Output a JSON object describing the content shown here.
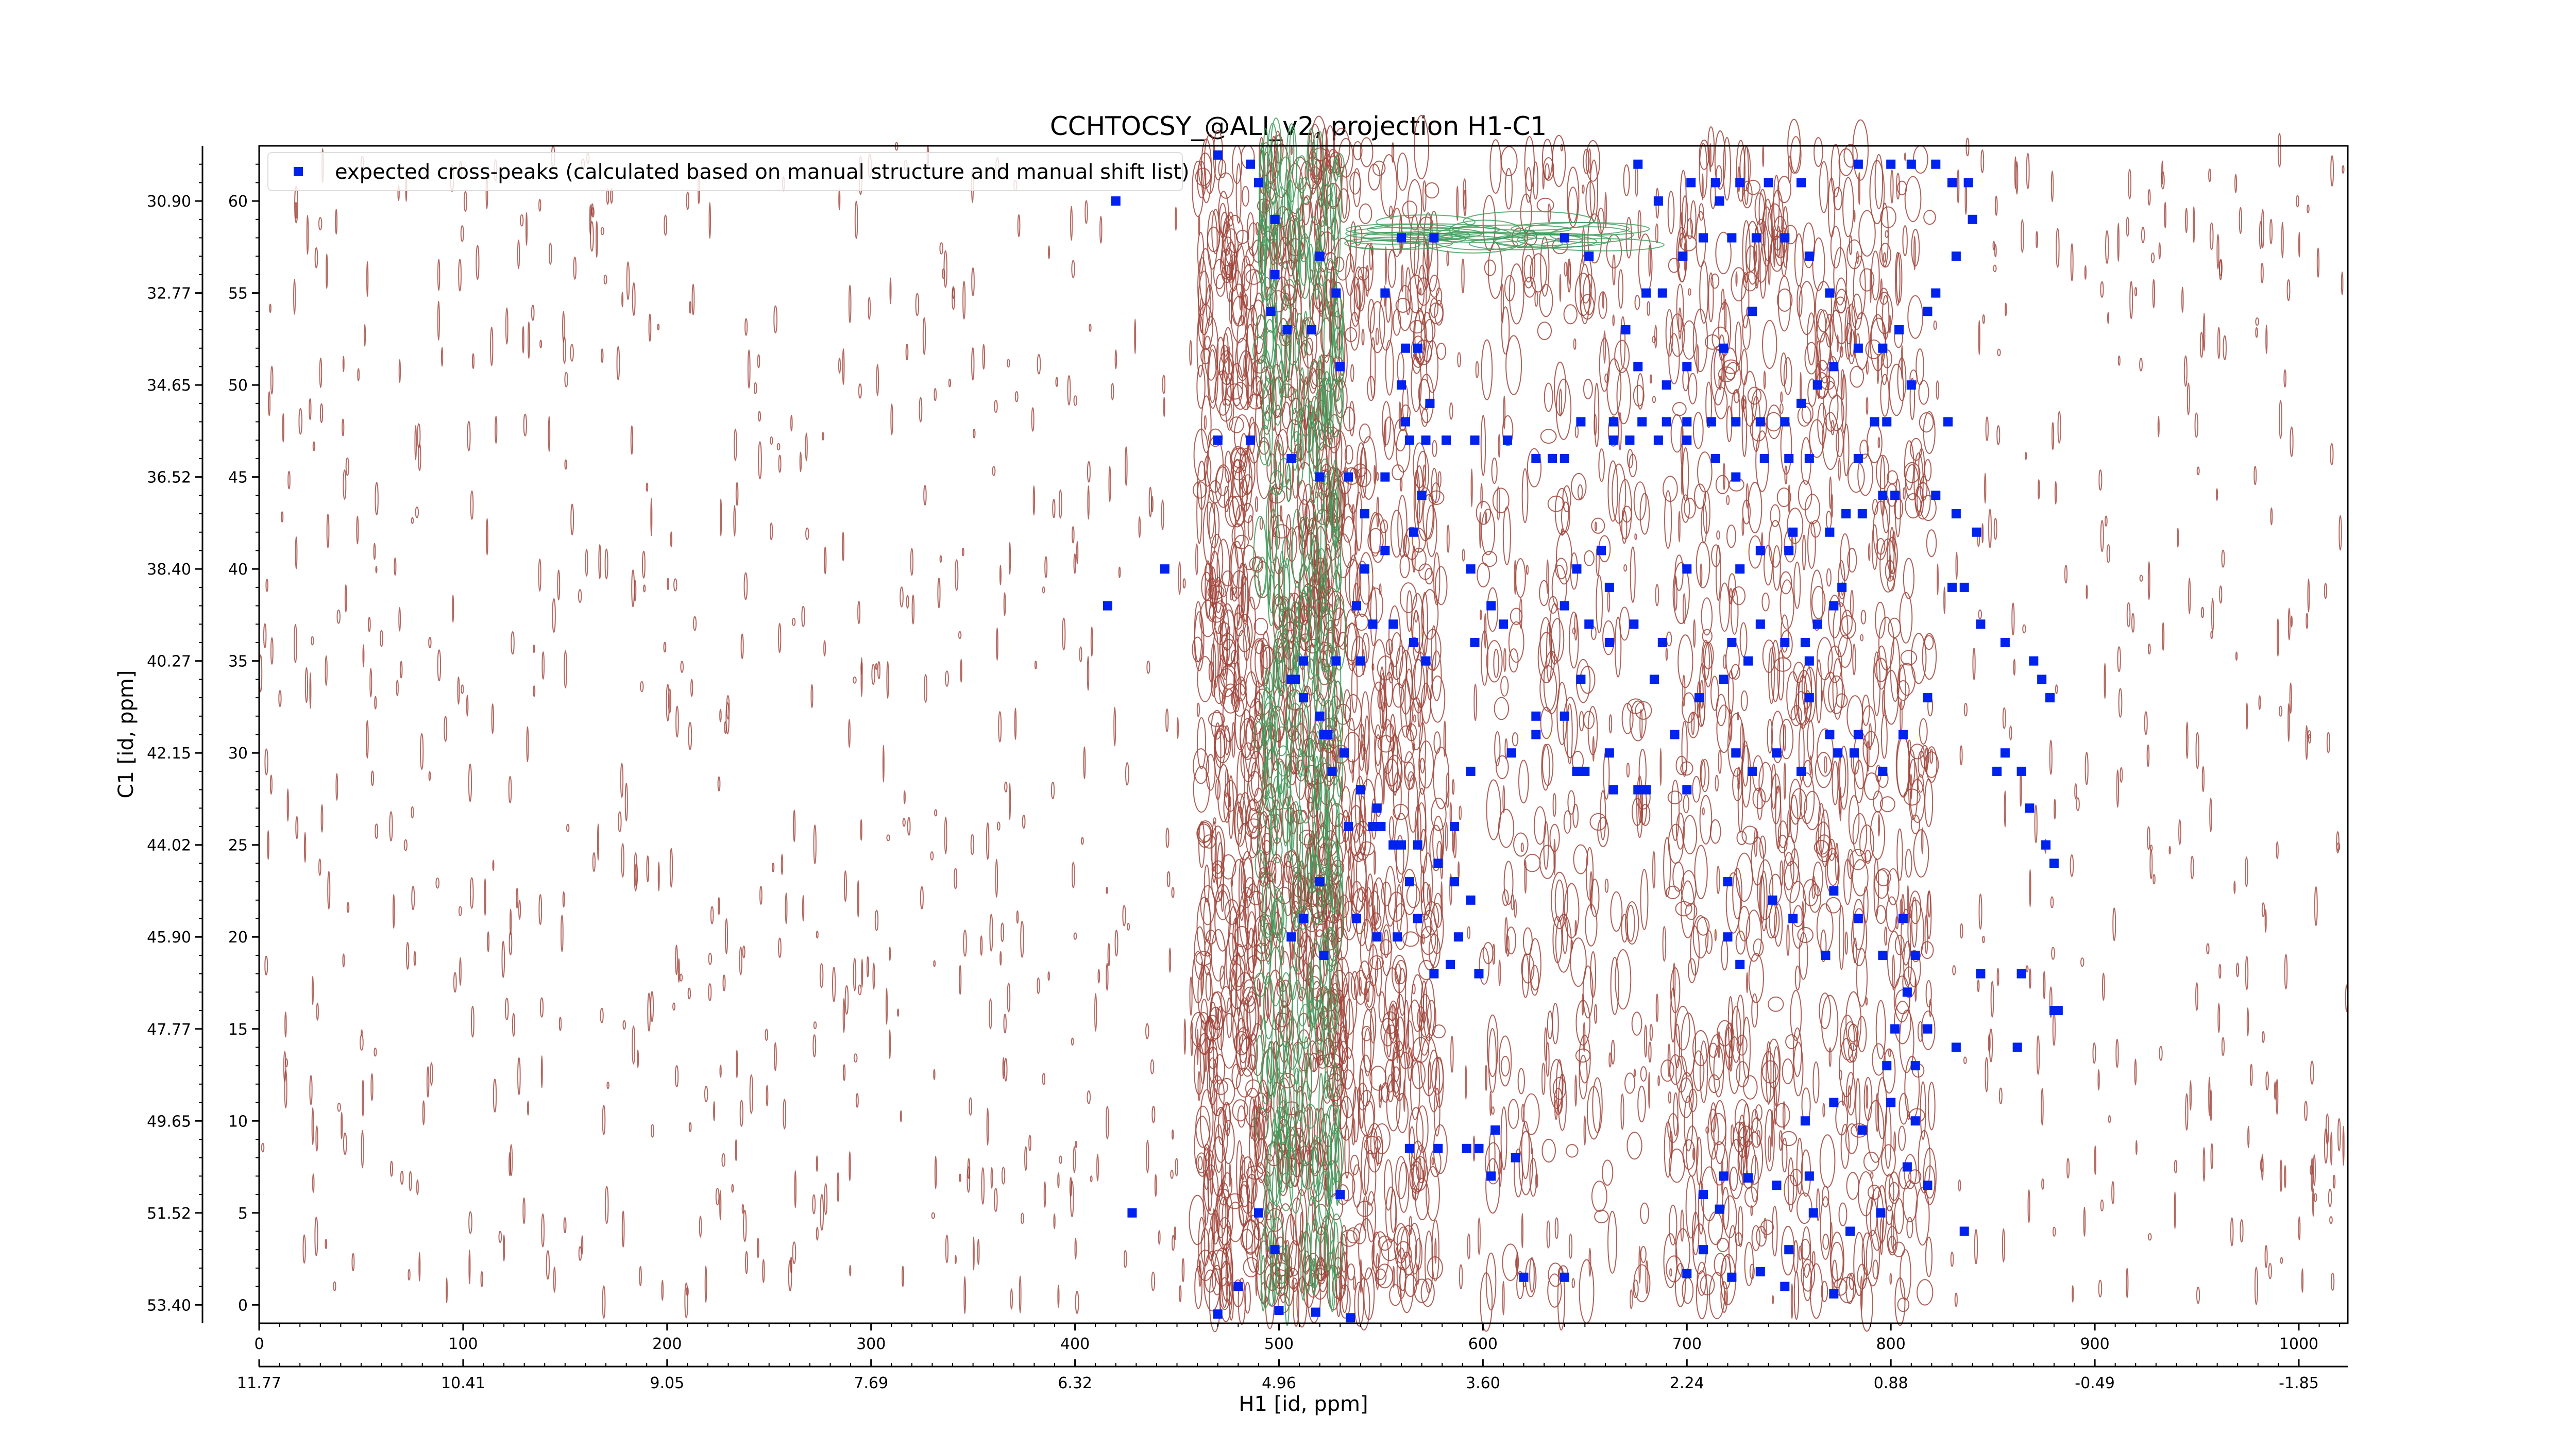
{
  "chart_data": {
    "type": "scatter",
    "title": "CCHTOCSY_@ALI_v2, projection H1-C1",
    "xlabel": "H1 [id, ppm]",
    "ylabel": "C1 [id, ppm]",
    "xlim": [
      0,
      1024
    ],
    "ylim": [
      -1,
      63
    ],
    "x_ticks": [
      "0",
      "100",
      "200",
      "300",
      "400",
      "500",
      "600",
      "700",
      "800",
      "900",
      "1000"
    ],
    "y_ticks": [
      "0",
      "5",
      "10",
      "15",
      "20",
      "25",
      "30",
      "35",
      "40",
      "45",
      "50",
      "55",
      "60"
    ],
    "x_ppm_ticks": [
      "11.77",
      "10.41",
      "9.05",
      "7.69",
      "6.32",
      "4.96",
      "3.60",
      "2.24",
      "0.88",
      "-0.49",
      "-1.85"
    ],
    "y_ppm_ticks": [
      "53.40",
      "51.52",
      "49.65",
      "47.77",
      "45.90",
      "44.02",
      "42.15",
      "40.27",
      "38.40",
      "36.52",
      "34.65",
      "32.77",
      "30.90"
    ],
    "grid": false,
    "legend_position": "top-left",
    "colors": {
      "positive_contours": "#a0443a",
      "negative_contours": "#3f9b5a",
      "peaks": "#0022ee"
    },
    "series": [
      {
        "name": "expected cross-peaks (calculated based on manual structure and manual shift list)",
        "points": [
          [
            470,
            -0.5
          ],
          [
            480,
            1
          ],
          [
            500,
            -0.3
          ],
          [
            518,
            -0.4
          ],
          [
            535,
            -0.7
          ],
          [
            620,
            1.5
          ],
          [
            640,
            1.5
          ],
          [
            700,
            1.7
          ],
          [
            708,
            3
          ],
          [
            722,
            1.5
          ],
          [
            736,
            1.8
          ],
          [
            748,
            1
          ],
          [
            772,
            0.6
          ],
          [
            750,
            3
          ],
          [
            762,
            5
          ],
          [
            780,
            4
          ],
          [
            795,
            5
          ],
          [
            760,
            7
          ],
          [
            744,
            6.5
          ],
          [
            730,
            6.9
          ],
          [
            718,
            7
          ],
          [
            708,
            6
          ],
          [
            716,
            5.2
          ],
          [
            758,
            10
          ],
          [
            772,
            11
          ],
          [
            786,
            9.5
          ],
          [
            800,
            11
          ],
          [
            812,
            10
          ],
          [
            808,
            7.5
          ],
          [
            818,
            6.5
          ],
          [
            836,
            4
          ],
          [
            798,
            13
          ],
          [
            812,
            13
          ],
          [
            802,
            15
          ],
          [
            808,
            17
          ],
          [
            818,
            15
          ],
          [
            832,
            14
          ],
          [
            844,
            18
          ],
          [
            864,
            18
          ],
          [
            880,
            16
          ],
          [
            882,
            16
          ],
          [
            862,
            14
          ],
          [
            812,
            19
          ],
          [
            806,
            21
          ],
          [
            796,
            19
          ],
          [
            784,
            21
          ],
          [
            768,
            19
          ],
          [
            752,
            21
          ],
          [
            726,
            18.5
          ],
          [
            720,
            20
          ],
          [
            720,
            23
          ],
          [
            742,
            22
          ],
          [
            772,
            22.5
          ],
          [
            650,
            29
          ],
          [
            662,
            30
          ],
          [
            680,
            28
          ],
          [
            694,
            31
          ],
          [
            706,
            33
          ],
          [
            724,
            30
          ],
          [
            732,
            29
          ],
          [
            744,
            30
          ],
          [
            756,
            29
          ],
          [
            770,
            31
          ],
          [
            782,
            30
          ],
          [
            796,
            29
          ],
          [
            806,
            31
          ],
          [
            818,
            33
          ],
          [
            718,
            34
          ],
          [
            722,
            36
          ],
          [
            730,
            35
          ],
          [
            736,
            37
          ],
          [
            626,
            32
          ],
          [
            640,
            32
          ],
          [
            648,
            34
          ],
          [
            652,
            37
          ],
          [
            662,
            36
          ],
          [
            674,
            37
          ],
          [
            684,
            34
          ],
          [
            688,
            36
          ],
          [
            640,
            38
          ],
          [
            646,
            40
          ],
          [
            658,
            41
          ],
          [
            662,
            39
          ],
          [
            594,
            40
          ],
          [
            604,
            38
          ],
          [
            610,
            37
          ],
          [
            596,
            36
          ],
          [
            572,
            35
          ],
          [
            566,
            36
          ],
          [
            556,
            37
          ],
          [
            546,
            37
          ],
          [
            540,
            35
          ],
          [
            524,
            31
          ],
          [
            526,
            29
          ],
          [
            506,
            34
          ],
          [
            534,
            26
          ],
          [
            546,
            26
          ],
          [
            586,
            26
          ],
          [
            594,
            29
          ],
          [
            614,
            30
          ],
          [
            626,
            31
          ],
          [
            646,
            29
          ],
          [
            664,
            28
          ],
          [
            676,
            28
          ],
          [
            700,
            28
          ],
          [
            538,
            21
          ],
          [
            548,
            20
          ],
          [
            558,
            20
          ],
          [
            568,
            21
          ],
          [
            588,
            20
          ],
          [
            576,
            18
          ],
          [
            584,
            18.5
          ],
          [
            598,
            18
          ],
          [
            564,
            23
          ],
          [
            520,
            23
          ],
          [
            512,
            21
          ],
          [
            506,
            20
          ],
          [
            522,
            19
          ],
          [
            490,
            5
          ],
          [
            498,
            3
          ],
          [
            530,
            6
          ],
          [
            564,
            8.5
          ],
          [
            578,
            8.5
          ],
          [
            592,
            8.5
          ],
          [
            598,
            8.5
          ],
          [
            604,
            7
          ],
          [
            616,
            8
          ],
          [
            606,
            9.5
          ],
          [
            444,
            40
          ],
          [
            470,
            47
          ],
          [
            486,
            47
          ],
          [
            506,
            46
          ],
          [
            520,
            45
          ],
          [
            534,
            45
          ],
          [
            542,
            43
          ],
          [
            552,
            45
          ],
          [
            564,
            47
          ],
          [
            562,
            48
          ],
          [
            574,
            49
          ],
          [
            560,
            50
          ],
          [
            530,
            51
          ],
          [
            516,
            53
          ],
          [
            504,
            53
          ],
          [
            496,
            54
          ],
          [
            528,
            55
          ],
          [
            552,
            55
          ],
          [
            562,
            52
          ],
          [
            568,
            52
          ],
          [
            576,
            58
          ],
          [
            560,
            58
          ],
          [
            520,
            57
          ],
          [
            498,
            59
          ],
          [
            490,
            61
          ],
          [
            486,
            62
          ],
          [
            470,
            62.5
          ],
          [
            416,
            38
          ],
          [
            420,
            60
          ],
          [
            428,
            5
          ],
          [
            498,
            56
          ],
          [
            640,
            58
          ],
          [
            652,
            57
          ],
          [
            670,
            53
          ],
          [
            680,
            55
          ],
          [
            688,
            55
          ],
          [
            698,
            57
          ],
          [
            708,
            58
          ],
          [
            716,
            60
          ],
          [
            722,
            58
          ],
          [
            734,
            58
          ],
          [
            748,
            58
          ],
          [
            760,
            57
          ],
          [
            770,
            55
          ],
          [
            732,
            54
          ],
          [
            718,
            52
          ],
          [
            700,
            51
          ],
          [
            690,
            50
          ],
          [
            676,
            51
          ],
          [
            664,
            47
          ],
          [
            672,
            47
          ],
          [
            686,
            47
          ],
          [
            700,
            47
          ],
          [
            714,
            46
          ],
          [
            724,
            45
          ],
          [
            738,
            46
          ],
          [
            750,
            46
          ],
          [
            760,
            46
          ],
          [
            784,
            46
          ],
          [
            792,
            48
          ],
          [
            798,
            48
          ],
          [
            822,
            44
          ],
          [
            832,
            43
          ],
          [
            810,
            50
          ],
          [
            828,
            48
          ],
          [
            842,
            42
          ],
          [
            830,
            39
          ],
          [
            836,
            39
          ],
          [
            844,
            37
          ],
          [
            856,
            36
          ],
          [
            870,
            35
          ],
          [
            874,
            34
          ],
          [
            878,
            33
          ],
          [
            852,
            29
          ],
          [
            856,
            30
          ],
          [
            864,
            29
          ],
          [
            868,
            27
          ],
          [
            876,
            25
          ],
          [
            880,
            24
          ],
          [
            748,
            36
          ],
          [
            758,
            36
          ],
          [
            760,
            33
          ],
          [
            774,
            30
          ],
          [
            784,
            31
          ],
          [
            700,
            40
          ],
          [
            726,
            40
          ],
          [
            736,
            41
          ],
          [
            750,
            41
          ],
          [
            752,
            42
          ],
          [
            770,
            42
          ],
          [
            778,
            43
          ],
          [
            786,
            43
          ],
          [
            796,
            44
          ],
          [
            802,
            44
          ],
          [
            776,
            39
          ],
          [
            772,
            38
          ],
          [
            764,
            37
          ],
          [
            760,
            35
          ],
          [
            676,
            62
          ],
          [
            686,
            60
          ],
          [
            702,
            61
          ],
          [
            714,
            61
          ],
          [
            726,
            61
          ],
          [
            740,
            61
          ],
          [
            756,
            61
          ],
          [
            784,
            62
          ],
          [
            800,
            62
          ],
          [
            810,
            62
          ],
          [
            822,
            62
          ],
          [
            830,
            61
          ],
          [
            838,
            61
          ],
          [
            840,
            59
          ],
          [
            832,
            57
          ],
          [
            822,
            55
          ],
          [
            818,
            54
          ],
          [
            804,
            53
          ],
          [
            796,
            52
          ],
          [
            784,
            52
          ],
          [
            772,
            51
          ],
          [
            764,
            50
          ],
          [
            756,
            49
          ],
          [
            748,
            48
          ],
          [
            736,
            48
          ],
          [
            724,
            48
          ],
          [
            712,
            48
          ],
          [
            700,
            48
          ],
          [
            690,
            48
          ],
          [
            678,
            48
          ],
          [
            664,
            48
          ],
          [
            648,
            48
          ],
          [
            640,
            46
          ],
          [
            634,
            46
          ],
          [
            626,
            46
          ],
          [
            612,
            47
          ],
          [
            596,
            47
          ],
          [
            582,
            47
          ],
          [
            572,
            47
          ],
          [
            570,
            44
          ],
          [
            566,
            42
          ],
          [
            552,
            41
          ],
          [
            542,
            40
          ],
          [
            538,
            38
          ],
          [
            528,
            35
          ],
          [
            512,
            35
          ],
          [
            508,
            34
          ],
          [
            512,
            33
          ],
          [
            520,
            32
          ],
          [
            522,
            31
          ],
          [
            532,
            30
          ],
          [
            540,
            28
          ],
          [
            548,
            27
          ],
          [
            550,
            26
          ],
          [
            556,
            25
          ],
          [
            560,
            25
          ],
          [
            568,
            25
          ],
          [
            578,
            24
          ],
          [
            586,
            23
          ],
          [
            594,
            22
          ]
        ]
      }
    ]
  }
}
